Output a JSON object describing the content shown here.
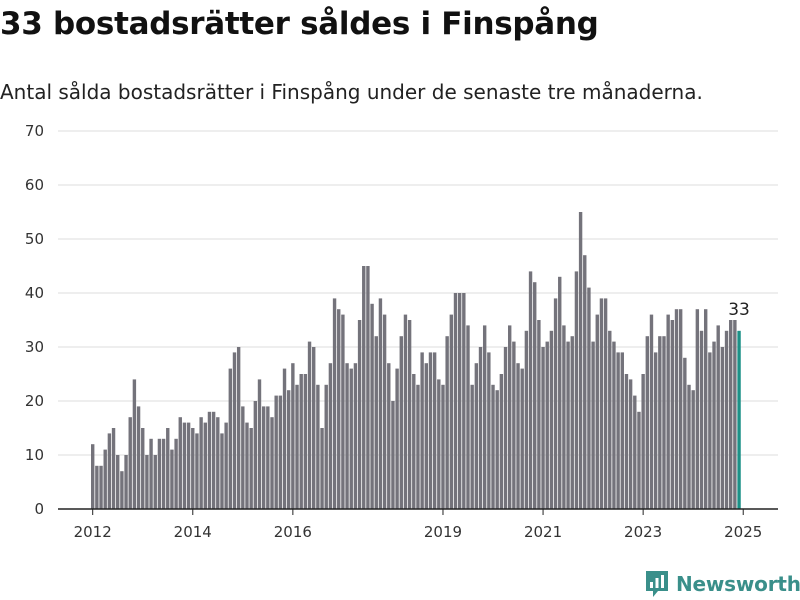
{
  "title": "33 bostadsrätter såldes i Finspång",
  "subtitle": "Antal sålda bostadsrätter i Finspång under de senaste tre månaderna.",
  "brand": {
    "name": "Newsworthy",
    "icon": "newsworthy-logo-icon",
    "color": "#3a8f8a"
  },
  "chart_data": {
    "type": "bar",
    "colors": {
      "bar": "#74737b",
      "highlight": "#1c9187",
      "grid": "#dddddd",
      "axis": "#222222"
    },
    "ylim": [
      0,
      70
    ],
    "yticks": [
      0,
      10,
      20,
      30,
      40,
      50,
      60,
      70
    ],
    "xticks": [
      "2012",
      "2014",
      "2016",
      "2019",
      "2021",
      "2023",
      "2025"
    ],
    "grid": true,
    "legend": "none",
    "highlight_label": "33",
    "values": [
      12,
      8,
      8,
      11,
      14,
      15,
      10,
      7,
      10,
      17,
      24,
      19,
      15,
      10,
      13,
      10,
      13,
      13,
      15,
      11,
      13,
      17,
      16,
      16,
      15,
      14,
      17,
      16,
      18,
      18,
      17,
      14,
      16,
      26,
      29,
      30,
      19,
      16,
      15,
      20,
      24,
      19,
      19,
      17,
      21,
      21,
      26,
      22,
      27,
      23,
      25,
      25,
      31,
      30,
      23,
      15,
      23,
      27,
      39,
      37,
      36,
      27,
      26,
      27,
      35,
      45,
      45,
      38,
      32,
      39,
      36,
      27,
      20,
      26,
      32,
      36,
      35,
      25,
      23,
      29,
      27,
      29,
      29,
      24,
      23,
      32,
      36,
      40,
      40,
      40,
      34,
      23,
      27,
      30,
      34,
      29,
      23,
      22,
      25,
      30,
      34,
      31,
      27,
      26,
      33,
      44,
      42,
      35,
      30,
      31,
      33,
      39,
      43,
      34,
      31,
      32,
      44,
      55,
      47,
      41,
      31,
      36,
      39,
      39,
      33,
      31,
      29,
      29,
      25,
      24,
      21,
      18,
      25,
      32,
      36,
      29,
      32,
      32,
      36,
      35,
      37,
      37,
      28,
      23,
      22,
      37,
      33,
      37,
      29,
      31,
      34,
      30,
      33,
      35,
      35,
      33
    ]
  }
}
